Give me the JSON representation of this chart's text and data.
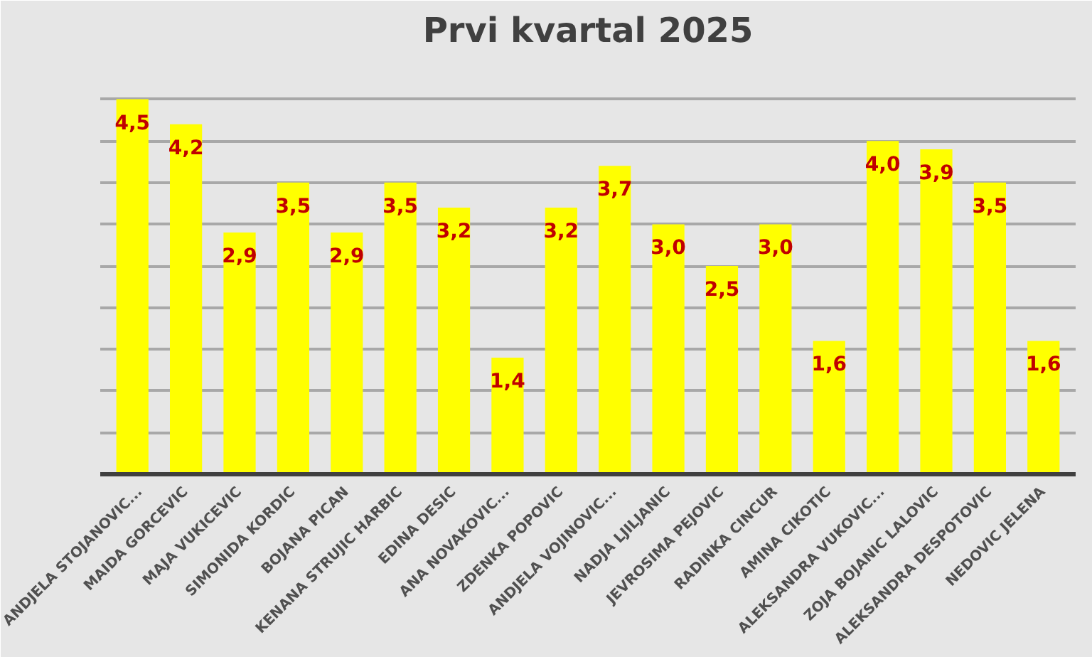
{
  "chart_data": {
    "type": "bar",
    "title": "Prvi kvartal 2025",
    "categories": [
      "ANDJELA STOJANOVIC...",
      "MAIDA GORCEVIC",
      "MAJA VUKICEVIC",
      "SIMONIDA KORDIC",
      "BOJANA PICAN",
      "KENANA STRUJIC HARBIC",
      "EDINA DESIC",
      "ANA NOVAKOVIC...",
      "ZDENKA POPOVIC",
      "ANDJELA VOJINOVIC...",
      "NADJA LJILJANIC",
      "JEVROSIMA PEJOVIC",
      "RADINKA CINCUR",
      "AMINA CIKOTIC",
      "ALEKSANDRA VUKOVIC...",
      "ZOJA BOJANIC LALOVIC",
      "ALEKSANDRA DESPOTOVIC",
      "NEDOVIC JELENA"
    ],
    "values": [
      4.5,
      4.2,
      2.9,
      3.5,
      2.9,
      3.5,
      3.2,
      1.4,
      3.2,
      3.7,
      3.0,
      2.5,
      3.0,
      1.6,
      4.0,
      3.9,
      3.5,
      1.6
    ],
    "value_labels": [
      "4,5",
      "4,2",
      "2,9",
      "3,5",
      "2,9",
      "3,5",
      "3,2",
      "1,4",
      "3,2",
      "3,7",
      "3,0",
      "2,5",
      "3,0",
      "1,6",
      "4,0",
      "3,9",
      "3,5",
      "1,6"
    ],
    "color": "#ffff00",
    "ylim": [
      0,
      5
    ],
    "yticks": [
      {
        "value": 0.5,
        "label": null
      },
      {
        "value": 1,
        "label": null
      },
      {
        "value": 1.5,
        "label": null
      },
      {
        "value": 2,
        "label": null
      },
      {
        "value": 2.5,
        "label": null
      },
      {
        "value": 3,
        "label": null
      },
      {
        "value": 3.5,
        "label": null
      },
      {
        "value": 4,
        "label": null
      },
      {
        "value": 4.5,
        "label": null
      },
      {
        "value": 5,
        "label": null
      }
    ],
    "grid": "y",
    "tick_labels": "x"
  }
}
